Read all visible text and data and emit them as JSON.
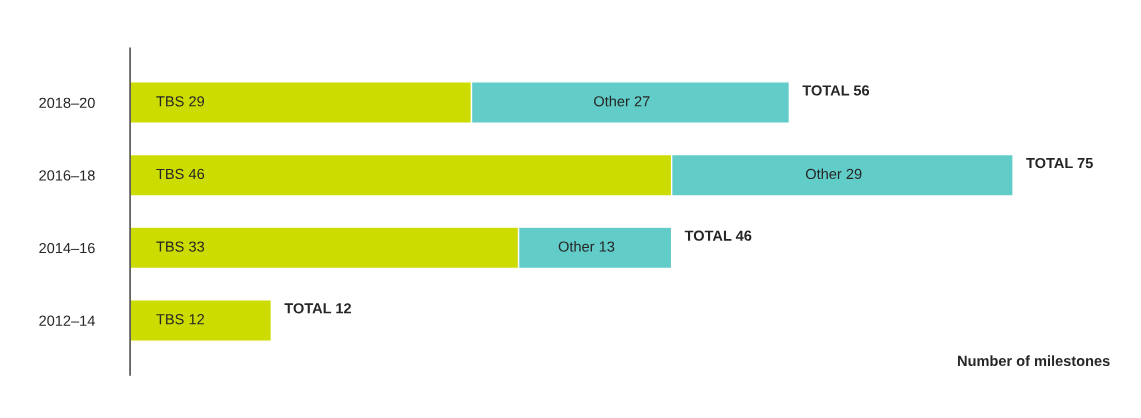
{
  "chart_data": {
    "type": "bar",
    "orientation": "horizontal",
    "stacked": true,
    "categories": [
      "2018–20",
      "2016–18",
      "2014–16",
      "2012–14"
    ],
    "series": [
      {
        "name": "TBS",
        "color": "#cddc00",
        "values": [
          29,
          46,
          33,
          12
        ]
      },
      {
        "name": "Other",
        "color": "#62ccc8",
        "values": [
          27,
          29,
          13,
          null
        ]
      }
    ],
    "data_labels": true,
    "totals": [
      "TOTAL 56",
      "TOTAL 75",
      "TOTAL 46",
      "TOTAL 12"
    ],
    "xlabel": "Number of milestones",
    "tick_labels": "y",
    "grid": false,
    "legend": false
  }
}
